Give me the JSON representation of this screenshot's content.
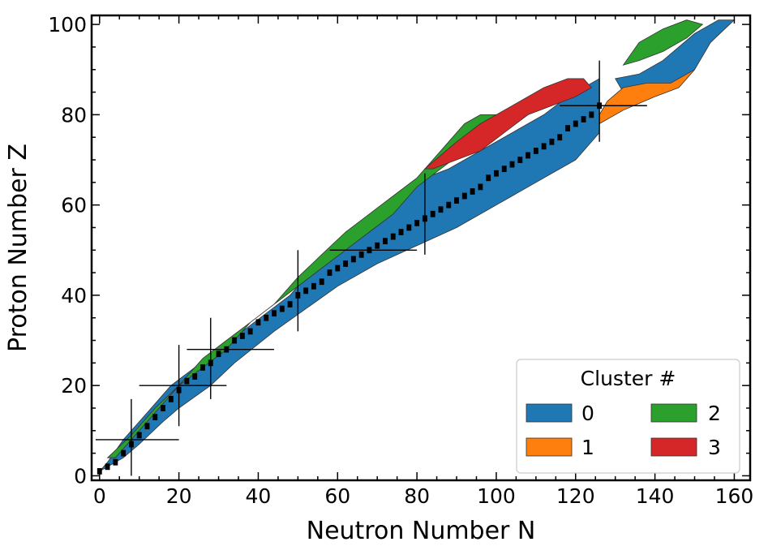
{
  "chart_data": {
    "type": "heatmap",
    "title": "",
    "xlabel": "Neutron Number N",
    "ylabel": "Proton Number Z",
    "xlim": [
      -2,
      164
    ],
    "ylim": [
      -1,
      102
    ],
    "x_ticks": [
      0,
      20,
      40,
      60,
      80,
      100,
      120,
      140,
      160
    ],
    "y_ticks": [
      0,
      20,
      40,
      60,
      80,
      100
    ],
    "grid": false,
    "legend": {
      "title": "Cluster #",
      "placement": "lower-right",
      "entries": [
        {
          "label": "0",
          "color": "#1f77b4"
        },
        {
          "label": "1",
          "color": "#ff7f0e"
        },
        {
          "label": "2",
          "color": "#2ca02c"
        },
        {
          "label": "3",
          "color": "#d62728"
        }
      ]
    },
    "clusters": [
      {
        "label": "0",
        "color": "#1f77b4",
        "region": [
          [
            0,
            1
          ],
          [
            6,
            4
          ],
          [
            10,
            7
          ],
          [
            16,
            12
          ],
          [
            20,
            15
          ],
          [
            28,
            20
          ],
          [
            34,
            25
          ],
          [
            44,
            32
          ],
          [
            52,
            37
          ],
          [
            60,
            42
          ],
          [
            70,
            47
          ],
          [
            80,
            51
          ],
          [
            90,
            55
          ],
          [
            100,
            60
          ],
          [
            110,
            65
          ],
          [
            120,
            70
          ],
          [
            126,
            76
          ],
          [
            126,
            88
          ],
          [
            118,
            84
          ],
          [
            112,
            80
          ],
          [
            104,
            76
          ],
          [
            96,
            72
          ],
          [
            88,
            68
          ],
          [
            82,
            66
          ],
          [
            78,
            64
          ],
          [
            72,
            58
          ],
          [
            66,
            54
          ],
          [
            60,
            50
          ],
          [
            54,
            46
          ],
          [
            48,
            40
          ],
          [
            42,
            36
          ],
          [
            36,
            32
          ],
          [
            30,
            28
          ],
          [
            24,
            24
          ],
          [
            18,
            20
          ],
          [
            12,
            14
          ],
          [
            6,
            8
          ],
          [
            2,
            3
          ]
        ]
      },
      {
        "label": "0",
        "color": "#1f77b4",
        "region": [
          [
            130,
            88
          ],
          [
            136,
            89
          ],
          [
            142,
            92
          ],
          [
            146,
            95
          ],
          [
            150,
            98
          ],
          [
            156,
            101
          ],
          [
            160,
            101
          ],
          [
            154,
            96
          ],
          [
            150,
            90
          ],
          [
            144,
            86
          ],
          [
            136,
            84
          ],
          [
            132,
            85
          ]
        ]
      },
      {
        "label": "1",
        "color": "#ff7f0e",
        "region": [
          [
            126,
            78
          ],
          [
            132,
            81
          ],
          [
            140,
            84
          ],
          [
            146,
            86
          ],
          [
            150,
            90
          ],
          [
            144,
            87
          ],
          [
            138,
            87
          ],
          [
            132,
            86
          ],
          [
            128,
            83
          ],
          [
            126,
            80
          ]
        ]
      },
      {
        "label": "2",
        "color": "#2ca02c",
        "region": [
          [
            2,
            4
          ],
          [
            8,
            9
          ],
          [
            14,
            15
          ],
          [
            20,
            20
          ],
          [
            26,
            26
          ],
          [
            32,
            30
          ],
          [
            38,
            34
          ],
          [
            44,
            38
          ],
          [
            50,
            44
          ],
          [
            56,
            49
          ],
          [
            62,
            54
          ],
          [
            68,
            58
          ],
          [
            74,
            62
          ],
          [
            80,
            66
          ],
          [
            84,
            70
          ],
          [
            88,
            74
          ],
          [
            92,
            78
          ],
          [
            96,
            80
          ],
          [
            100,
            80
          ],
          [
            96,
            76
          ],
          [
            92,
            72
          ],
          [
            86,
            68
          ],
          [
            80,
            64
          ],
          [
            74,
            58
          ],
          [
            68,
            54
          ],
          [
            62,
            50
          ],
          [
            56,
            46
          ],
          [
            50,
            42
          ],
          [
            44,
            38
          ],
          [
            38,
            34
          ],
          [
            32,
            28
          ],
          [
            26,
            24
          ],
          [
            20,
            20
          ],
          [
            14,
            14
          ],
          [
            8,
            8
          ],
          [
            4,
            4
          ]
        ]
      },
      {
        "label": "2",
        "color": "#2ca02c",
        "region": [
          [
            132,
            91
          ],
          [
            136,
            96
          ],
          [
            142,
            99
          ],
          [
            148,
            101
          ],
          [
            152,
            100
          ],
          [
            148,
            97
          ],
          [
            142,
            94
          ],
          [
            136,
            92
          ]
        ]
      },
      {
        "label": "3",
        "color": "#d62728",
        "region": [
          [
            82,
            68
          ],
          [
            90,
            74
          ],
          [
            96,
            78
          ],
          [
            104,
            82
          ],
          [
            112,
            86
          ],
          [
            118,
            88
          ],
          [
            122,
            88
          ],
          [
            124,
            86
          ],
          [
            120,
            84
          ],
          [
            114,
            82
          ],
          [
            108,
            80
          ],
          [
            102,
            76
          ],
          [
            96,
            72
          ],
          [
            90,
            70
          ],
          [
            84,
            68
          ]
        ]
      }
    ],
    "stable_line": [
      [
        0,
        1
      ],
      [
        2,
        2
      ],
      [
        4,
        3
      ],
      [
        6,
        5
      ],
      [
        8,
        7
      ],
      [
        10,
        9
      ],
      [
        12,
        11
      ],
      [
        14,
        13
      ],
      [
        16,
        15
      ],
      [
        18,
        17
      ],
      [
        20,
        19
      ],
      [
        22,
        21
      ],
      [
        24,
        22
      ],
      [
        26,
        24
      ],
      [
        28,
        25
      ],
      [
        30,
        27
      ],
      [
        32,
        28
      ],
      [
        34,
        30
      ],
      [
        36,
        31
      ],
      [
        38,
        32
      ],
      [
        40,
        34
      ],
      [
        42,
        35
      ],
      [
        44,
        36
      ],
      [
        46,
        37
      ],
      [
        48,
        38
      ],
      [
        50,
        40
      ],
      [
        52,
        41
      ],
      [
        54,
        42
      ],
      [
        56,
        43
      ],
      [
        58,
        45
      ],
      [
        60,
        46
      ],
      [
        62,
        47
      ],
      [
        64,
        48
      ],
      [
        66,
        49
      ],
      [
        68,
        50
      ],
      [
        70,
        51
      ],
      [
        72,
        52
      ],
      [
        74,
        53
      ],
      [
        76,
        54
      ],
      [
        78,
        55
      ],
      [
        80,
        56
      ],
      [
        82,
        57
      ],
      [
        84,
        58
      ],
      [
        86,
        59
      ],
      [
        88,
        60
      ],
      [
        90,
        61
      ],
      [
        92,
        62
      ],
      [
        94,
        63
      ],
      [
        96,
        64
      ],
      [
        98,
        66
      ],
      [
        100,
        67
      ],
      [
        102,
        68
      ],
      [
        104,
        69
      ],
      [
        106,
        70
      ],
      [
        108,
        71
      ],
      [
        110,
        72
      ],
      [
        112,
        73
      ],
      [
        114,
        74
      ],
      [
        116,
        75
      ],
      [
        118,
        77
      ],
      [
        120,
        78
      ],
      [
        122,
        79
      ],
      [
        124,
        80
      ],
      [
        126,
        82
      ]
    ],
    "magic_numbers": [
      8,
      20,
      28,
      50,
      82,
      126
    ]
  }
}
